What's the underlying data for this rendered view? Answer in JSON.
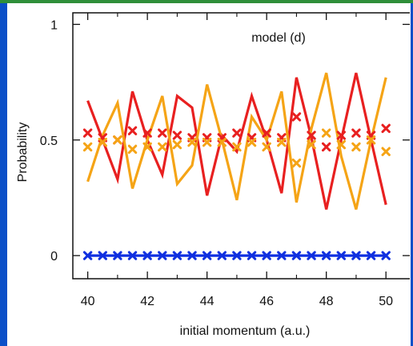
{
  "chart_data": {
    "type": "line",
    "title": "model (d)",
    "xlabel": "initial momentum (a.u.)",
    "ylabel": "Probability",
    "xlim": [
      39.5,
      50.8
    ],
    "ylim": [
      -0.1,
      1.05
    ],
    "grid": false,
    "legend": "none",
    "x_ticks": [
      {
        "value": 40,
        "label": "40"
      },
      {
        "value": 42,
        "label": "42"
      },
      {
        "value": 44,
        "label": "44"
      },
      {
        "value": 46,
        "label": "46"
      },
      {
        "value": 48,
        "label": "48"
      },
      {
        "value": 50,
        "label": "50"
      }
    ],
    "y_ticks": [
      {
        "value": 0,
        "label": "0"
      },
      {
        "value": 0.5,
        "label": "0.5"
      },
      {
        "value": 1,
        "label": "1"
      }
    ],
    "series": [
      {
        "color": "#e82020",
        "style": "line",
        "x": [
          40,
          40.5,
          41,
          41.5,
          42,
          42.5,
          43,
          43.5,
          44,
          44.5,
          45,
          45.5,
          46,
          46.5,
          47,
          47.5,
          48,
          48.5,
          49,
          49.5,
          50
        ],
        "values": [
          0.67,
          0.5,
          0.33,
          0.71,
          0.5,
          0.35,
          0.69,
          0.64,
          0.26,
          0.52,
          0.45,
          0.69,
          0.5,
          0.27,
          0.77,
          0.51,
          0.2,
          0.5,
          0.79,
          0.5,
          0.22
        ]
      },
      {
        "color": "#f5a416",
        "style": "line",
        "x": [
          40,
          40.5,
          41,
          41.5,
          42,
          42.5,
          43,
          43.5,
          44,
          44.5,
          45,
          45.5,
          46,
          46.5,
          47,
          47.5,
          48,
          48.5,
          49,
          49.5,
          50
        ],
        "values": [
          0.32,
          0.52,
          0.66,
          0.29,
          0.5,
          0.69,
          0.31,
          0.39,
          0.74,
          0.5,
          0.24,
          0.6,
          0.5,
          0.71,
          0.23,
          0.55,
          0.79,
          0.43,
          0.2,
          0.5,
          0.77
        ]
      },
      {
        "color": "#e82020",
        "style": "marker",
        "x": [
          40,
          40.5,
          41,
          41.5,
          42,
          42.5,
          43,
          43.5,
          44,
          44.5,
          45,
          45.5,
          46,
          46.5,
          47,
          47.5,
          48,
          48.5,
          49,
          49.5,
          50
        ],
        "values": [
          0.53,
          0.51,
          0.5,
          0.54,
          0.53,
          0.53,
          0.52,
          0.51,
          0.51,
          0.51,
          0.53,
          0.51,
          0.53,
          0.51,
          0.6,
          0.52,
          0.47,
          0.52,
          0.53,
          0.52,
          0.55
        ]
      },
      {
        "color": "#f5a416",
        "style": "marker",
        "x": [
          40,
          40.5,
          41,
          41.5,
          42,
          42.5,
          43,
          43.5,
          44,
          44.5,
          45,
          45.5,
          46,
          46.5,
          47,
          47.5,
          48,
          48.5,
          49,
          49.5,
          50
        ],
        "values": [
          0.47,
          0.49,
          0.5,
          0.46,
          0.47,
          0.47,
          0.48,
          0.49,
          0.49,
          0.49,
          0.47,
          0.49,
          0.47,
          0.49,
          0.4,
          0.48,
          0.53,
          0.48,
          0.47,
          0.5,
          0.45
        ]
      },
      {
        "color": "#1030e0",
        "style": "line+marker",
        "x": [
          40,
          40.5,
          41,
          41.5,
          42,
          42.5,
          43,
          43.5,
          44,
          44.5,
          45,
          45.5,
          46,
          46.5,
          47,
          47.5,
          48,
          48.5,
          49,
          49.5,
          50
        ],
        "values": [
          0,
          0,
          0,
          0,
          0,
          0,
          0,
          0,
          0,
          0,
          0,
          0,
          0,
          0,
          0,
          0,
          0,
          0,
          0,
          0,
          0
        ]
      }
    ]
  }
}
